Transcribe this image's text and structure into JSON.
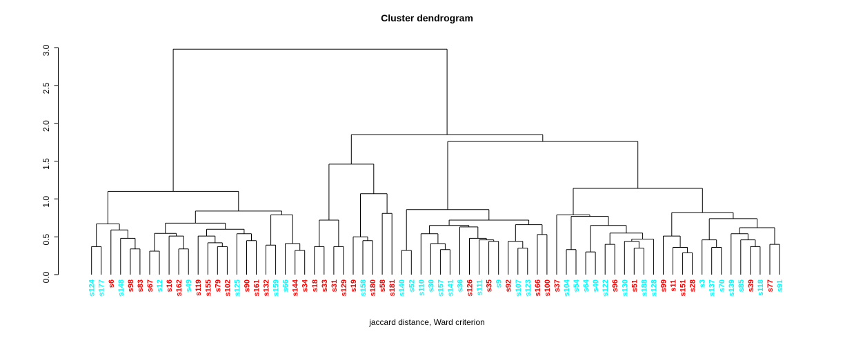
{
  "chart_data": {
    "type": "dendrogram",
    "title": "Cluster dendrogram",
    "xlabel": "jaccard distance, Ward criterion",
    "ylabel": "",
    "ylim": [
      0,
      3
    ],
    "y_ticks": [
      "0.0",
      "0.5",
      "1.0",
      "1.5",
      "2.0",
      "2.5",
      "3.0"
    ],
    "grid": false,
    "line_color": "#000000",
    "label_colors": {
      "red": "#FF0000",
      "cyan": "#00FFFF"
    },
    "leaves": [
      {
        "label": "s124",
        "color": "cyan"
      },
      {
        "label": "s177",
        "color": "cyan"
      },
      {
        "label": "s6",
        "color": "red"
      },
      {
        "label": "s148",
        "color": "cyan"
      },
      {
        "label": "s98",
        "color": "red"
      },
      {
        "label": "s83",
        "color": "red"
      },
      {
        "label": "s67",
        "color": "red"
      },
      {
        "label": "s12",
        "color": "cyan"
      },
      {
        "label": "s16",
        "color": "red"
      },
      {
        "label": "s162",
        "color": "red"
      },
      {
        "label": "s49",
        "color": "cyan"
      },
      {
        "label": "s119",
        "color": "red"
      },
      {
        "label": "s155",
        "color": "red"
      },
      {
        "label": "s79",
        "color": "red"
      },
      {
        "label": "s102",
        "color": "red"
      },
      {
        "label": "s125",
        "color": "cyan"
      },
      {
        "label": "s90",
        "color": "red"
      },
      {
        "label": "s161",
        "color": "red"
      },
      {
        "label": "s132",
        "color": "red"
      },
      {
        "label": "s159",
        "color": "cyan"
      },
      {
        "label": "s66",
        "color": "cyan"
      },
      {
        "label": "s144",
        "color": "red"
      },
      {
        "label": "s34",
        "color": "red"
      },
      {
        "label": "s18",
        "color": "red"
      },
      {
        "label": "s33",
        "color": "red"
      },
      {
        "label": "s31",
        "color": "red"
      },
      {
        "label": "s129",
        "color": "red"
      },
      {
        "label": "s19",
        "color": "red"
      },
      {
        "label": "s158",
        "color": "cyan"
      },
      {
        "label": "s180",
        "color": "red"
      },
      {
        "label": "s58",
        "color": "red"
      },
      {
        "label": "s181",
        "color": "red"
      },
      {
        "label": "s140",
        "color": "cyan"
      },
      {
        "label": "s52",
        "color": "cyan"
      },
      {
        "label": "s110",
        "color": "cyan"
      },
      {
        "label": "s30",
        "color": "cyan"
      },
      {
        "label": "s157",
        "color": "cyan"
      },
      {
        "label": "s141",
        "color": "cyan"
      },
      {
        "label": "s36",
        "color": "cyan"
      },
      {
        "label": "s126",
        "color": "red"
      },
      {
        "label": "s111",
        "color": "cyan"
      },
      {
        "label": "s35",
        "color": "red"
      },
      {
        "label": "s9",
        "color": "cyan"
      },
      {
        "label": "s92",
        "color": "red"
      },
      {
        "label": "s107",
        "color": "cyan"
      },
      {
        "label": "s123",
        "color": "cyan"
      },
      {
        "label": "s166",
        "color": "red"
      },
      {
        "label": "s100",
        "color": "red"
      },
      {
        "label": "s37",
        "color": "red"
      },
      {
        "label": "s104",
        "color": "cyan"
      },
      {
        "label": "s54",
        "color": "cyan"
      },
      {
        "label": "s64",
        "color": "cyan"
      },
      {
        "label": "s40",
        "color": "cyan"
      },
      {
        "label": "s122",
        "color": "cyan"
      },
      {
        "label": "s96",
        "color": "red"
      },
      {
        "label": "s130",
        "color": "cyan"
      },
      {
        "label": "s51",
        "color": "red"
      },
      {
        "label": "s188",
        "color": "cyan"
      },
      {
        "label": "s128",
        "color": "cyan"
      },
      {
        "label": "s99",
        "color": "red"
      },
      {
        "label": "s11",
        "color": "red"
      },
      {
        "label": "s151",
        "color": "red"
      },
      {
        "label": "s28",
        "color": "red"
      },
      {
        "label": "s3",
        "color": "cyan"
      },
      {
        "label": "s137",
        "color": "cyan"
      },
      {
        "label": "s70",
        "color": "cyan"
      },
      {
        "label": "s139",
        "color": "cyan"
      },
      {
        "label": "s85",
        "color": "cyan"
      },
      {
        "label": "s39",
        "color": "red"
      },
      {
        "label": "s118",
        "color": "cyan"
      },
      {
        "label": "s77",
        "color": "red"
      },
      {
        "label": "s91",
        "color": "cyan"
      }
    ],
    "tree": [
      2.98,
      [
        1.1,
        [
          0.67,
          [
            0.37,
            0,
            1
          ],
          [
            0.59,
            2,
            [
              0.48,
              3,
              [
                0.34,
                4,
                5
              ]
            ]
          ]
        ],
        [
          0.84,
          [
            0.68,
            [
              0.545,
              [
                0.31,
                6,
                7
              ],
              [
                0.51,
                8,
                [
                  0.34,
                  9,
                  10
                ]
              ]
            ],
            [
              0.6,
              [
                0.51,
                11,
                [
                  0.42,
                  12,
                  [
                    0.37,
                    13,
                    14
                  ]
                ]
              ],
              [
                0.54,
                15,
                [
                  0.45,
                  16,
                  17
                ]
              ]
            ]
          ],
          [
            0.79,
            [
              0.39,
              18,
              19
            ],
            [
              0.41,
              20,
              [
                0.32,
                21,
                22
              ]
            ]
          ]
        ]
      ],
      [
        1.85,
        [
          1.46,
          [
            0.72,
            [
              0.37,
              23,
              24
            ],
            [
              0.37,
              25,
              26
            ]
          ],
          [
            1.07,
            [
              0.5,
              27,
              [
                0.45,
                28,
                29
              ]
            ],
            [
              0.81,
              30,
              31
            ]
          ]
        ],
        [
          1.76,
          [
            0.86,
            [
              0.32,
              32,
              33
            ],
            [
              0.72,
              [
                0.65,
                [
                  0.54,
                  34,
                  [
                    0.41,
                    35,
                    [
                      0.33,
                      36,
                      37
                    ]
                  ]
                ],
                [
                  0.63,
                  38,
                  [
                    0.48,
                    39,
                    [
                      0.46,
                      40,
                      [
                        0.44,
                        41,
                        42
                      ]
                    ]
                  ]
                ]
              ],
              [
                0.66,
                [
                  0.44,
                  43,
                  [
                    0.35,
                    44,
                    45
                  ]
                ],
                [
                  0.53,
                  46,
                  47
                ]
              ]
            ]
          ],
          [
            1.14,
            [
              0.79,
              48,
              [
                0.77,
                [
                  0.33,
                  49,
                  50
                ],
                [
                  0.65,
                  [
                    0.3,
                    51,
                    52
                  ],
                  [
                    0.55,
                    [
                      0.4,
                      53,
                      54
                    ],
                    [
                      0.47,
                      [
                        0.44,
                        55,
                        [
                          0.35,
                          56,
                          57
                        ]
                      ],
                      58
                    ]
                  ]
                ]
              ]
            ],
            [
              0.82,
              [
                0.51,
                59,
                [
                  0.36,
                  60,
                  [
                    0.29,
                    61,
                    62
                  ]
                ]
              ],
              [
                0.74,
                [
                  0.46,
                  63,
                  [
                    0.36,
                    64,
                    65
                  ]
                ],
                [
                  0.62,
                  [
                    0.54,
                    66,
                    [
                      0.46,
                      67,
                      [
                        0.37,
                        68,
                        69
                      ]
                    ]
                  ],
                  [
                    0.4,
                    70,
                    71
                  ]
                ]
              ]
            ]
          ]
        ]
      ]
    ]
  }
}
